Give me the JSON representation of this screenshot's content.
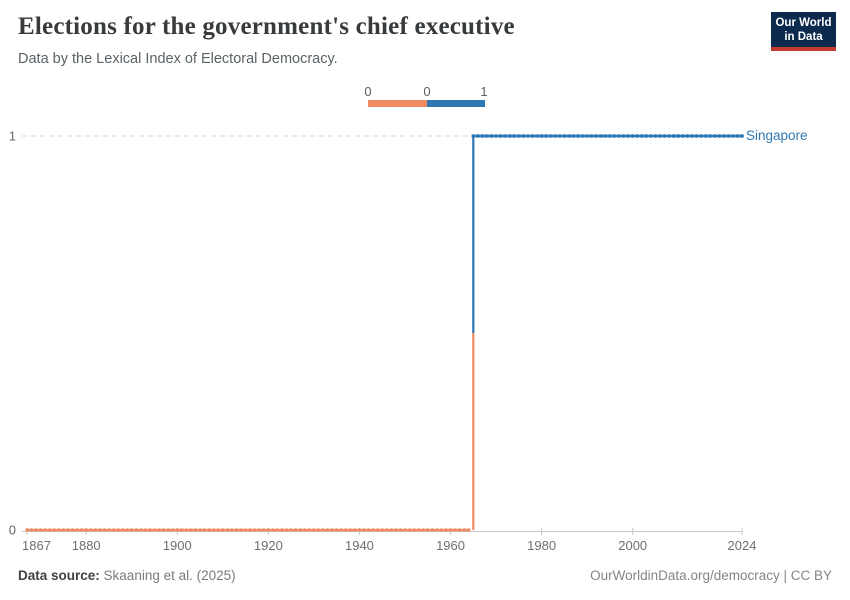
{
  "header": {
    "title": "Elections for the government's chief executive",
    "subtitle": "Data by the Lexical Index of Electoral Democracy."
  },
  "logo": {
    "line1": "Our World",
    "line2": "in Data",
    "bg_color": "#0c2a4e",
    "stripe_color": "#c43a2f"
  },
  "chart_data": {
    "type": "line",
    "line_style": "step",
    "title": "Elections for the government's chief executive",
    "x_range": [
      1867,
      2024
    ],
    "y_range": [
      0,
      1
    ],
    "x_ticks": [
      1867,
      1880,
      1900,
      1920,
      1940,
      1960,
      1980,
      2000,
      2024
    ],
    "y_ticks": [
      0,
      1
    ],
    "grid": "dashed horizontal gridline at y=1",
    "series": [
      {
        "name": "Singapore",
        "segments": [
          {
            "from_year": 1867,
            "to_year": 1964,
            "value": 0,
            "color": "#F08A62"
          },
          {
            "from_year": 1965,
            "to_year": 2024,
            "value": 1,
            "color": "#2F77B2"
          }
        ]
      }
    ],
    "legend": {
      "position": "top-center",
      "tick_labels": [
        "0",
        "0",
        "1"
      ],
      "entries": [
        {
          "label": "0",
          "color": "#F08A62"
        },
        {
          "label": "1",
          "color": "#2F77B2"
        }
      ]
    }
  },
  "footer": {
    "source_label": "Data source:",
    "source_value": "Skaaning et al. (2025)",
    "rights": "OurWorldinData.org/democracy | CC BY"
  }
}
